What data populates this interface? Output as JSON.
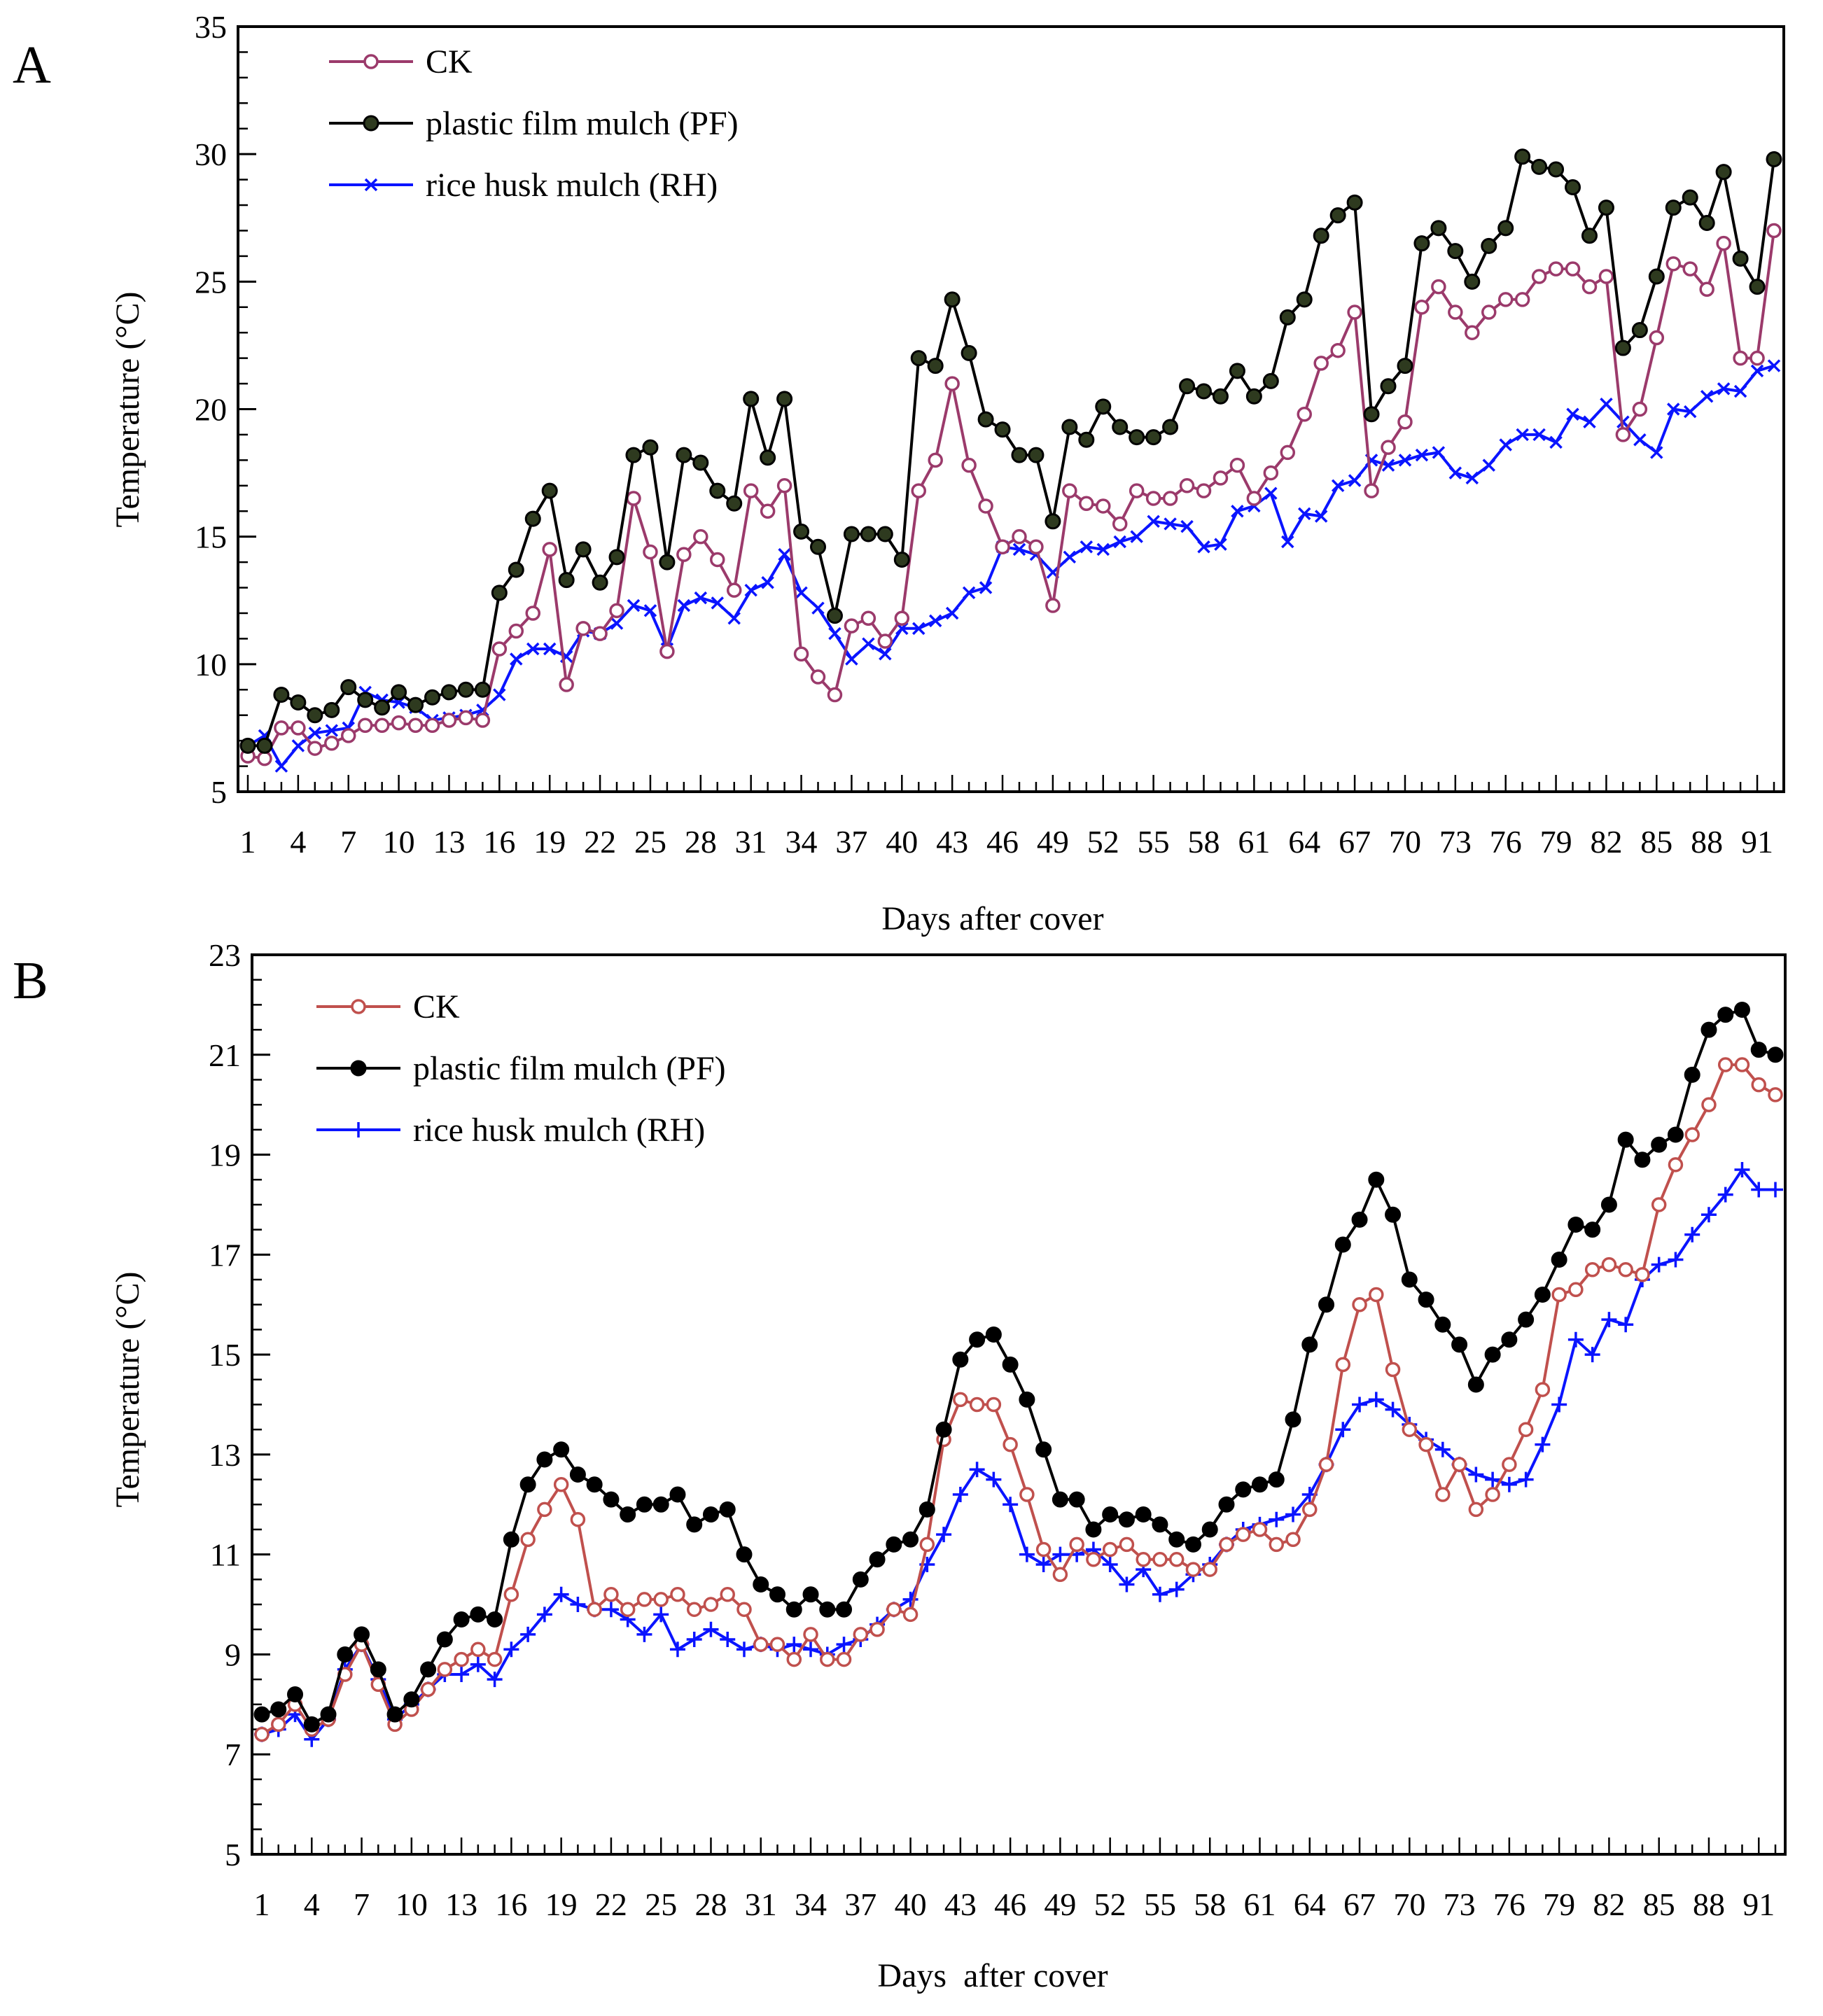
{
  "colors": {
    "ck_a": "#9b3a6b",
    "ck_b": "#c0504d",
    "pf": "#000000",
    "pf_marker_fill_a": "#2e3a1f",
    "rh": "#0a14ff"
  },
  "chart_data": [
    {
      "type": "line",
      "panel": "A",
      "xlabel": "Days after cover",
      "ylabel": "Temperature (°C)",
      "xlim": [
        1,
        92
      ],
      "ylim": [
        5,
        35
      ],
      "yticks": [
        5,
        10,
        15,
        20,
        25,
        30,
        35
      ],
      "xticklabels": [
        "1",
        "4",
        "7",
        "10",
        "13",
        "16",
        "19",
        "22",
        "25",
        "28",
        "31",
        "34",
        "37",
        "40",
        "43",
        "46",
        "49",
        "52",
        "55",
        "58",
        "61",
        "64",
        "67",
        "70",
        "73",
        "76",
        "79",
        "82",
        "85",
        "88",
        "91"
      ],
      "xtickvalues": [
        1,
        4,
        7,
        10,
        13,
        16,
        19,
        22,
        25,
        28,
        31,
        34,
        37,
        40,
        43,
        46,
        49,
        52,
        55,
        58,
        61,
        64,
        67,
        70,
        73,
        76,
        79,
        82,
        85,
        88,
        91
      ],
      "legend_position": "top-left",
      "grid": false,
      "series": [
        {
          "name": "CK",
          "marker": "open-circle",
          "color_key": "ck_a",
          "values": [
            6.4,
            6.3,
            7.5,
            7.5,
            6.7,
            6.9,
            7.2,
            7.6,
            7.6,
            7.7,
            7.6,
            7.6,
            7.8,
            7.9,
            7.8,
            10.6,
            11.3,
            12.0,
            14.5,
            9.2,
            11.4,
            11.2,
            12.1,
            16.5,
            14.4,
            10.5,
            14.3,
            15.0,
            14.1,
            12.9,
            16.8,
            16.0,
            17.0,
            10.4,
            9.5,
            8.8,
            11.5,
            11.8,
            10.9,
            11.8,
            16.8,
            18.0,
            21.0,
            17.8,
            16.2,
            14.6,
            15.0,
            14.6,
            12.3,
            16.8,
            16.3,
            16.2,
            15.5,
            16.8,
            16.5,
            16.5,
            17.0,
            16.8,
            17.3,
            17.8,
            16.5,
            17.5,
            18.3,
            19.8,
            21.8,
            22.3,
            23.8,
            16.8,
            18.5,
            19.5,
            24.0,
            24.8,
            23.8,
            23.0,
            23.8,
            24.3,
            24.3,
            25.2,
            25.5,
            25.5,
            24.8,
            25.2,
            19.0,
            20.0,
            22.8,
            25.7,
            25.5,
            24.7,
            26.5,
            22.0,
            22.0,
            27.0
          ]
        },
        {
          "name": "plastic film mulch (PF)",
          "marker": "filled-circle",
          "color_key": "pf",
          "values": [
            6.8,
            6.8,
            8.8,
            8.5,
            8.0,
            8.2,
            9.1,
            8.6,
            8.3,
            8.9,
            8.4,
            8.7,
            8.9,
            9.0,
            9.0,
            12.8,
            13.7,
            15.7,
            16.8,
            13.3,
            14.5,
            13.2,
            14.2,
            18.2,
            18.5,
            14.0,
            18.2,
            17.9,
            16.8,
            16.3,
            20.4,
            18.1,
            20.4,
            15.2,
            14.6,
            11.9,
            15.1,
            15.1,
            15.1,
            14.1,
            22.0,
            21.7,
            24.3,
            22.2,
            19.6,
            19.2,
            18.2,
            18.2,
            15.6,
            19.3,
            18.8,
            20.1,
            19.3,
            18.9,
            18.9,
            19.3,
            20.9,
            20.7,
            20.5,
            21.5,
            20.5,
            21.1,
            23.6,
            24.3,
            26.8,
            27.6,
            28.1,
            19.8,
            20.9,
            21.7,
            26.5,
            27.1,
            26.2,
            25.0,
            26.4,
            27.1,
            29.9,
            29.5,
            29.4,
            28.7,
            26.8,
            27.9,
            22.4,
            23.1,
            25.2,
            27.9,
            28.3,
            27.3,
            29.3,
            25.9,
            24.8,
            29.8
          ]
        },
        {
          "name": "rice husk mulch (RH)",
          "marker": "cross",
          "color_key": "rh",
          "values": [
            6.8,
            7.2,
            6.0,
            6.8,
            7.3,
            7.4,
            7.5,
            8.9,
            8.6,
            8.5,
            8.3,
            7.8,
            7.9,
            8.0,
            8.2,
            8.8,
            10.2,
            10.6,
            10.6,
            10.3,
            11.3,
            11.2,
            11.6,
            12.3,
            12.1,
            10.6,
            12.3,
            12.6,
            12.4,
            11.8,
            12.9,
            13.2,
            14.3,
            12.8,
            12.2,
            11.2,
            10.2,
            10.8,
            10.4,
            11.4,
            11.4,
            11.7,
            12.0,
            12.8,
            13.0,
            14.6,
            14.5,
            14.3,
            13.6,
            14.2,
            14.6,
            14.5,
            14.8,
            15.0,
            15.6,
            15.5,
            15.4,
            14.6,
            14.7,
            16.0,
            16.2,
            16.7,
            14.8,
            15.9,
            15.8,
            17.0,
            17.2,
            18.0,
            17.8,
            18.0,
            18.2,
            18.3,
            17.5,
            17.3,
            17.8,
            18.6,
            19.0,
            19.0,
            18.7,
            19.8,
            19.5,
            20.2,
            19.5,
            18.8,
            18.3,
            20.0,
            19.9,
            20.5,
            20.8,
            20.7,
            21.5,
            21.7
          ]
        }
      ]
    },
    {
      "type": "line",
      "panel": "B",
      "xlabel": "Days  after cover",
      "ylabel": "Temperature (°C)",
      "xlim": [
        1,
        92
      ],
      "ylim": [
        5,
        23
      ],
      "yticks": [
        5,
        7,
        9,
        11,
        13,
        15,
        17,
        19,
        21,
        23
      ],
      "xticklabels": [
        "1",
        "4",
        "7",
        "10",
        "13",
        "16",
        "19",
        "22",
        "25",
        "28",
        "31",
        "34",
        "37",
        "40",
        "43",
        "46",
        "49",
        "52",
        "55",
        "58",
        "61",
        "64",
        "67",
        "70",
        "73",
        "76",
        "79",
        "82",
        "85",
        "88",
        "91"
      ],
      "xtickvalues": [
        1,
        4,
        7,
        10,
        13,
        16,
        19,
        22,
        25,
        28,
        31,
        34,
        37,
        40,
        43,
        46,
        49,
        52,
        55,
        58,
        61,
        64,
        67,
        70,
        73,
        76,
        79,
        82,
        85,
        88,
        91
      ],
      "legend_position": "top-left",
      "grid": false,
      "series": [
        {
          "name": "CK",
          "marker": "open-circle",
          "color_key": "ck_b",
          "values": [
            7.4,
            7.6,
            8.0,
            7.5,
            7.7,
            8.6,
            9.2,
            8.4,
            7.6,
            7.9,
            8.3,
            8.7,
            8.9,
            9.1,
            8.9,
            10.2,
            11.3,
            11.9,
            12.4,
            11.7,
            9.9,
            10.2,
            9.9,
            10.1,
            10.1,
            10.2,
            9.9,
            10.0,
            10.2,
            9.9,
            9.2,
            9.2,
            8.9,
            9.4,
            8.9,
            8.9,
            9.4,
            9.5,
            9.9,
            9.8,
            11.2,
            13.3,
            14.1,
            14.0,
            14.0,
            13.2,
            12.2,
            11.1,
            10.6,
            11.2,
            10.9,
            11.1,
            11.2,
            10.9,
            10.9,
            10.9,
            10.7,
            10.7,
            11.2,
            11.4,
            11.5,
            11.2,
            11.3,
            11.9,
            12.8,
            14.8,
            16.0,
            16.2,
            14.7,
            13.5,
            13.2,
            12.2,
            12.8,
            11.9,
            12.2,
            12.8,
            13.5,
            14.3,
            16.2,
            16.3,
            16.7,
            16.8,
            16.7,
            16.6,
            18.0,
            18.8,
            19.4,
            20.0,
            20.8,
            20.8,
            20.4,
            20.2
          ]
        },
        {
          "name": "plastic film mulch (PF)",
          "marker": "filled-circle",
          "color_key": "pf",
          "values": [
            7.8,
            7.9,
            8.2,
            7.6,
            7.8,
            9.0,
            9.4,
            8.7,
            7.8,
            8.1,
            8.7,
            9.3,
            9.7,
            9.8,
            9.7,
            11.3,
            12.4,
            12.9,
            13.1,
            12.6,
            12.4,
            12.1,
            11.8,
            12.0,
            12.0,
            12.2,
            11.6,
            11.8,
            11.9,
            11.0,
            10.4,
            10.2,
            9.9,
            10.2,
            9.9,
            9.9,
            10.5,
            10.9,
            11.2,
            11.3,
            11.9,
            13.5,
            14.9,
            15.3,
            15.4,
            14.8,
            14.1,
            13.1,
            12.1,
            12.1,
            11.5,
            11.8,
            11.7,
            11.8,
            11.6,
            11.3,
            11.2,
            11.5,
            12.0,
            12.3,
            12.4,
            12.5,
            13.7,
            15.2,
            16.0,
            17.2,
            17.7,
            18.5,
            17.8,
            16.5,
            16.1,
            15.6,
            15.2,
            14.4,
            15.0,
            15.3,
            15.7,
            16.2,
            16.9,
            17.6,
            17.5,
            18.0,
            19.3,
            18.9,
            19.2,
            19.4,
            20.6,
            21.5,
            21.8,
            21.9,
            21.1,
            21.0
          ]
        },
        {
          "name": "rice husk mulch (RH)",
          "marker": "plus",
          "color_key": "rh",
          "values": [
            7.4,
            7.5,
            7.8,
            7.3,
            7.7,
            8.7,
            9.2,
            8.5,
            7.7,
            8.0,
            8.3,
            8.6,
            8.6,
            8.8,
            8.5,
            9.1,
            9.4,
            9.8,
            10.2,
            10.0,
            9.9,
            9.9,
            9.7,
            9.4,
            9.8,
            9.1,
            9.3,
            9.5,
            9.3,
            9.1,
            9.2,
            9.1,
            9.2,
            9.1,
            9.0,
            9.2,
            9.3,
            9.6,
            9.9,
            10.1,
            10.8,
            11.4,
            12.2,
            12.7,
            12.5,
            12.0,
            11.0,
            10.8,
            11.0,
            11.0,
            11.1,
            10.8,
            10.4,
            10.7,
            10.2,
            10.3,
            10.6,
            10.8,
            11.2,
            11.5,
            11.6,
            11.7,
            11.8,
            12.2,
            12.8,
            13.5,
            14.0,
            14.1,
            13.9,
            13.6,
            13.3,
            13.1,
            12.8,
            12.6,
            12.5,
            12.4,
            12.5,
            13.2,
            14.0,
            15.3,
            15.0,
            15.7,
            15.6,
            16.5,
            16.8,
            16.9,
            17.4,
            17.8,
            18.2,
            18.7,
            18.3,
            18.3
          ]
        }
      ]
    }
  ],
  "panels": [
    {
      "letter": "A"
    },
    {
      "letter": "B"
    }
  ]
}
